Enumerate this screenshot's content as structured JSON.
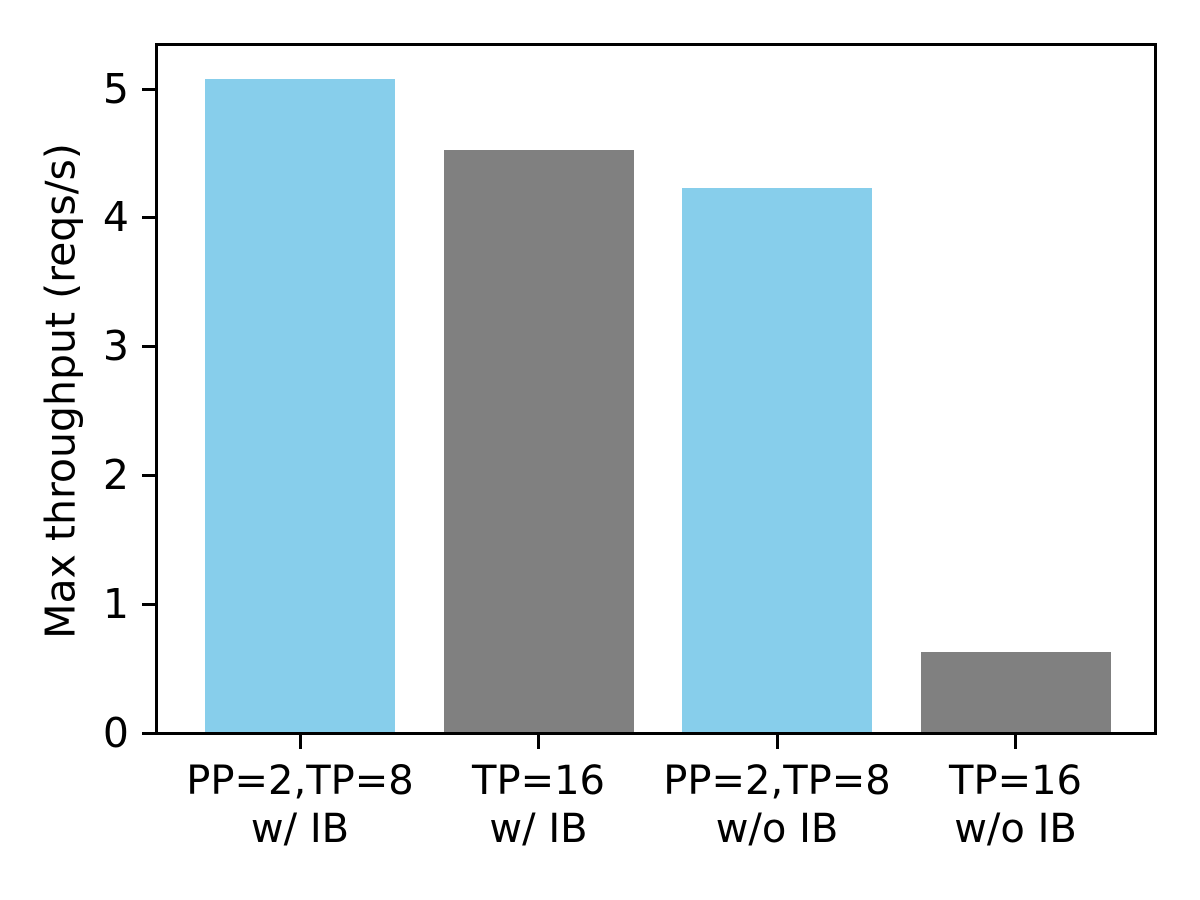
{
  "chart_data": {
    "type": "bar",
    "title": "",
    "xlabel": "",
    "ylabel": "Max throughput (reqs/s)",
    "categories": [
      [
        "PP=2,TP=8",
        "w/ IB"
      ],
      [
        "TP=16",
        "w/ IB"
      ],
      [
        "PP=2,TP=8",
        "w/o IB"
      ],
      [
        "TP=16",
        "w/o IB"
      ]
    ],
    "values": [
      5.08,
      4.53,
      4.23,
      0.63
    ],
    "bar_colors": [
      "#87CEEB",
      "#808080",
      "#87CEEB",
      "#808080"
    ],
    "yticks": [
      0,
      1,
      2,
      3,
      4,
      5
    ],
    "ylim": [
      0,
      5.35
    ],
    "grid": false,
    "legend": null,
    "axis_color": "#000000",
    "background_color": "#ffffff"
  }
}
